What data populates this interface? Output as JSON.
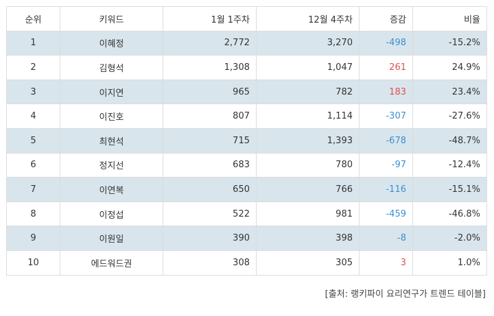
{
  "table": {
    "headers": {
      "rank": "순위",
      "keyword": "키워드",
      "week1": "1월 1주차",
      "week2": "12월 4주차",
      "diff": "증감",
      "ratio": "비율"
    },
    "rows": [
      {
        "rank": "1",
        "keyword": "이혜정",
        "week1": "2,772",
        "week2": "3,270",
        "diff": "-498",
        "ratio": "-15.2%"
      },
      {
        "rank": "2",
        "keyword": "김형석",
        "week1": "1,308",
        "week2": "1,047",
        "diff": "261",
        "ratio": "24.9%"
      },
      {
        "rank": "3",
        "keyword": "이지연",
        "week1": "965",
        "week2": "782",
        "diff": "183",
        "ratio": "23.4%"
      },
      {
        "rank": "4",
        "keyword": "이진호",
        "week1": "807",
        "week2": "1,114",
        "diff": "-307",
        "ratio": "-27.6%"
      },
      {
        "rank": "5",
        "keyword": "최현석",
        "week1": "715",
        "week2": "1,393",
        "diff": "-678",
        "ratio": "-48.7%"
      },
      {
        "rank": "6",
        "keyword": "정지선",
        "week1": "683",
        "week2": "780",
        "diff": "-97",
        "ratio": "-12.4%"
      },
      {
        "rank": "7",
        "keyword": "이연복",
        "week1": "650",
        "week2": "766",
        "diff": "-116",
        "ratio": "-15.1%"
      },
      {
        "rank": "8",
        "keyword": "이정섭",
        "week1": "522",
        "week2": "981",
        "diff": "-459",
        "ratio": "-46.8%"
      },
      {
        "rank": "9",
        "keyword": "이원일",
        "week1": "390",
        "week2": "398",
        "diff": "-8",
        "ratio": "-2.0%"
      },
      {
        "rank": "10",
        "keyword": "에드워드권",
        "week1": "308",
        "week2": "305",
        "diff": "3",
        "ratio": "1.0%"
      }
    ]
  },
  "source": "[출처: 랭키파이 요리연구가 트렌드 테이블]",
  "colors": {
    "stripe": "#d9e5ec",
    "negative": "#3a8fd0",
    "positive": "#e05050",
    "border": "#dcdcdc"
  }
}
